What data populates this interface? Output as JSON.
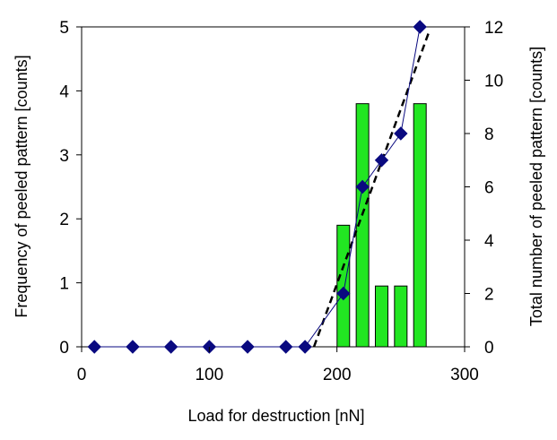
{
  "chart_data": {
    "type": "bar+line",
    "xlabel": "Load for destruction [nN]",
    "ylabel_left": "Frequency of peeled pattern [counts]",
    "ylabel_right": "Total number of peeled pattern [counts]",
    "xlim": [
      0,
      300
    ],
    "ylim_left": [
      0,
      5
    ],
    "ylim_right": [
      0,
      12
    ],
    "x_ticks": [
      0,
      100,
      200,
      300
    ],
    "y_ticks_left": [
      0,
      1,
      2,
      3,
      4,
      5
    ],
    "y_ticks_right": [
      0,
      2,
      4,
      6,
      8,
      10,
      12
    ],
    "grid": false,
    "bars": {
      "name": "Frequency",
      "axis": "left",
      "color": "#22e622",
      "x": [
        205,
        220,
        235,
        250,
        265
      ],
      "values": [
        1.9,
        3.8,
        0.95,
        0.95,
        3.8
      ]
    },
    "cumulative": {
      "name": "Total number",
      "axis": "right",
      "color": "#0a0a80",
      "marker": "diamond",
      "x": [
        10,
        40,
        70,
        100,
        130,
        160,
        175,
        205,
        220,
        235,
        250,
        265
      ],
      "values": [
        0,
        0,
        0,
        0,
        0,
        0,
        0,
        2,
        6,
        7,
        8,
        12
      ]
    },
    "fit_line": {
      "style": "dashed",
      "axis": "right",
      "color": "#000000",
      "x": [
        182,
        272
      ],
      "values": [
        0,
        11.8
      ]
    }
  }
}
